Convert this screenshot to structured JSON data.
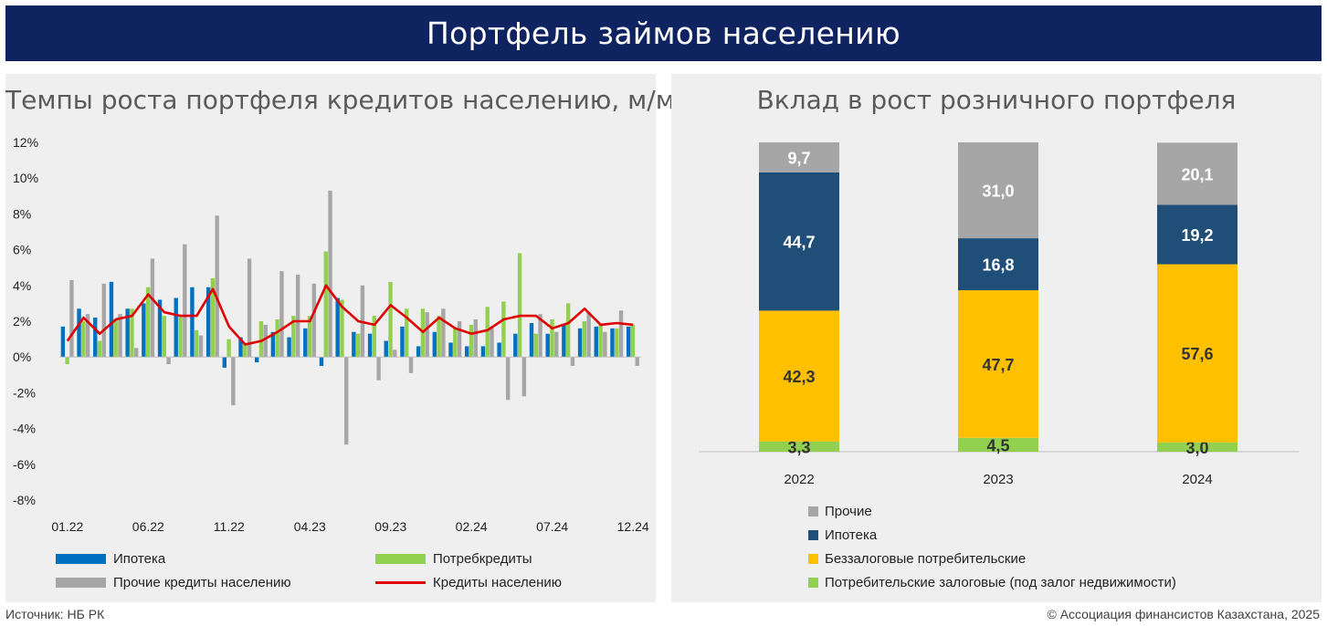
{
  "banner_title": "Портфель займов населению",
  "footer": {
    "source": "Источник: НБ РК",
    "copyright": "© Ассоциация финансистов Казахстана, 2025"
  },
  "colors": {
    "banner": "#0f2360",
    "mortgage": "#0070c0",
    "consumer": "#92d050",
    "other": "#a6a6a6",
    "total_line": "#e00000",
    "stack_other": "#a6a6a6",
    "stack_mortgage": "#1f4e79",
    "stack_unsecured": "#ffc000",
    "stack_secured": "#92d050"
  },
  "chart_data": [
    {
      "type": "bar",
      "title": "Темпы роста портфеля кредитов населению, м/м",
      "y_unit": "%",
      "ylim": [
        -8,
        12
      ],
      "y_ticks": [
        "12%",
        "10%",
        "8%",
        "6%",
        "4%",
        "2%",
        "0%",
        "-2%",
        "-4%",
        "-6%",
        "-8%"
      ],
      "y_tick_values": [
        12,
        10,
        8,
        6,
        4,
        2,
        0,
        -2,
        -4,
        -6,
        -8
      ],
      "x_tick_labels": [
        "01.22",
        "06.22",
        "11.22",
        "04.23",
        "09.23",
        "02.24",
        "07.24",
        "12.24"
      ],
      "x_tick_indices": [
        0,
        5,
        10,
        15,
        20,
        25,
        30,
        35
      ],
      "categories": [
        "01.22",
        "02.22",
        "03.22",
        "04.22",
        "05.22",
        "06.22",
        "07.22",
        "08.22",
        "09.22",
        "10.22",
        "11.22",
        "12.22",
        "01.23",
        "02.23",
        "03.23",
        "04.23",
        "05.23",
        "06.23",
        "07.23",
        "08.23",
        "09.23",
        "10.23",
        "11.23",
        "12.23",
        "01.24",
        "02.24",
        "03.24",
        "04.24",
        "05.24",
        "06.24",
        "07.24",
        "08.24",
        "09.24",
        "10.24",
        "11.24",
        "12.24"
      ],
      "series": [
        {
          "name": "Ипотека",
          "kind": "bar",
          "values": [
            1.7,
            2.7,
            2.2,
            4.2,
            2.7,
            3.0,
            3.2,
            3.3,
            3.9,
            3.9,
            -0.6,
            1.1,
            -0.3,
            1.4,
            1.1,
            1.6,
            -0.5,
            3.3,
            1.4,
            1.3,
            0.9,
            1.7,
            0.6,
            1.4,
            0.8,
            0.6,
            0.6,
            0.8,
            1.3,
            1.9,
            1.3,
            1.8,
            1.6,
            1.7,
            1.6,
            1.7
          ]
        },
        {
          "name": "Потребкредиты",
          "kind": "bar",
          "values": [
            -0.4,
            2.0,
            0.9,
            2.1,
            2.7,
            3.9,
            2.3,
            2.3,
            1.5,
            4.4,
            1.0,
            0.8,
            2.0,
            2.1,
            2.3,
            2.3,
            5.9,
            3.2,
            1.3,
            2.3,
            4.2,
            2.7,
            2.7,
            2.3,
            1.6,
            1.8,
            2.8,
            3.1,
            5.8,
            1.3,
            2.1,
            3.0,
            2.0,
            1.8,
            1.6,
            1.8
          ]
        },
        {
          "name": "Прочие кредиты населению",
          "kind": "bar",
          "values": [
            4.3,
            2.4,
            4.1,
            2.4,
            0.5,
            5.5,
            -0.4,
            6.3,
            1.2,
            7.9,
            -2.7,
            5.5,
            1.8,
            4.8,
            4.6,
            4.1,
            9.3,
            -4.9,
            4.0,
            -1.3,
            0.4,
            -0.9,
            2.5,
            2.7,
            2.0,
            2.1,
            1.7,
            -2.4,
            -2.2,
            2.4,
            1.4,
            -0.5,
            2.5,
            1.4,
            2.6,
            -0.5
          ]
        },
        {
          "name": "Кредиты населению",
          "kind": "line",
          "values": [
            0.9,
            2.2,
            1.3,
            2.1,
            2.3,
            3.5,
            2.5,
            2.3,
            2.3,
            3.8,
            1.7,
            0.7,
            0.9,
            1.4,
            2.0,
            2.0,
            4.0,
            2.8,
            2.0,
            1.8,
            2.9,
            2.2,
            1.4,
            2.2,
            1.6,
            1.3,
            1.5,
            2.1,
            2.3,
            2.3,
            1.6,
            1.9,
            2.7,
            1.8,
            1.9,
            1.8
          ]
        }
      ]
    },
    {
      "type": "bar",
      "stacked": true,
      "title": "Вклад в рост розничного портфеля",
      "categories": [
        "2022",
        "2023",
        "2024"
      ],
      "series": [
        {
          "name": "Потребительские залоговые (под залог недвижимости)",
          "values": [
            3.3,
            4.5,
            3.0
          ],
          "labels": [
            "3,3",
            "4,5",
            "3,0"
          ]
        },
        {
          "name": "Беззалоговые потребительские",
          "values": [
            42.3,
            47.7,
            57.6
          ],
          "labels": [
            "42,3",
            "47,7",
            "57,6"
          ]
        },
        {
          "name": "Ипотека",
          "values": [
            44.7,
            16.8,
            19.2
          ],
          "labels": [
            "44,7",
            "16,8",
            "19,2"
          ]
        },
        {
          "name": "Прочие",
          "values": [
            9.7,
            31.0,
            20.1
          ],
          "labels": [
            "9,7",
            "31,0",
            "20,1"
          ]
        }
      ],
      "legend_order": [
        "Прочие",
        "Ипотека",
        "Беззалоговые потребительские",
        "Потребительские залоговые (под залог недвижимости)"
      ],
      "ylim": [
        0,
        100
      ]
    }
  ]
}
